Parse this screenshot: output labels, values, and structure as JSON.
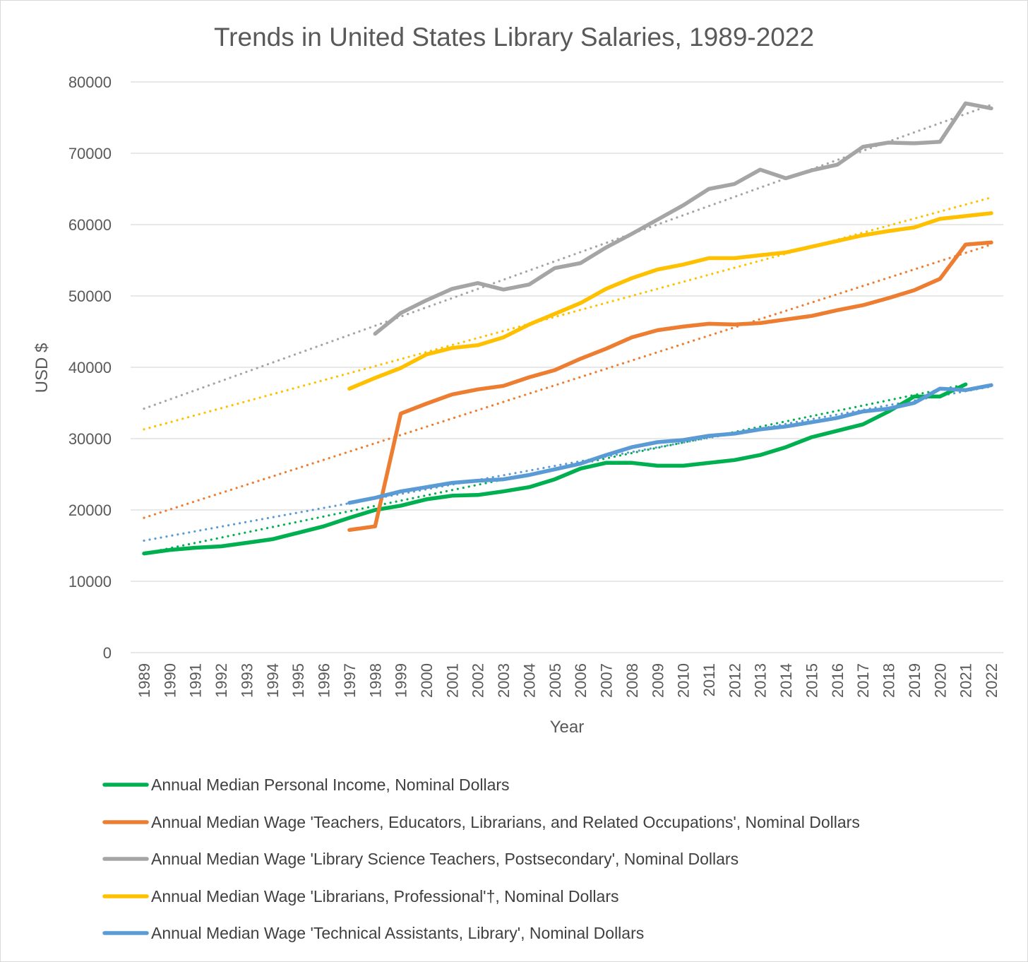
{
  "chart_data": {
    "type": "line",
    "title": "Trends in United States Library Salaries, 1989-2022",
    "xlabel": "Year",
    "ylabel": "USD $",
    "ylim": [
      0,
      80000
    ],
    "y_ticks": [
      0,
      10000,
      20000,
      30000,
      40000,
      50000,
      60000,
      70000,
      80000
    ],
    "x": [
      1989,
      1990,
      1991,
      1992,
      1993,
      1994,
      1995,
      1996,
      1997,
      1998,
      1999,
      2000,
      2001,
      2002,
      2003,
      2004,
      2005,
      2006,
      2007,
      2008,
      2009,
      2010,
      2011,
      2012,
      2013,
      2014,
      2015,
      2016,
      2017,
      2018,
      2019,
      2020,
      2021,
      2022
    ],
    "grid": "horizontal",
    "legend_position": "bottom",
    "trendlines": "linear, dotted, one per series",
    "series": [
      {
        "name": "Annual Median Personal Income, Nominal Dollars",
        "color": "#00b050",
        "values": [
          13900,
          14400,
          14700,
          14900,
          15400,
          15900,
          16800,
          17700,
          18900,
          20000,
          20600,
          21500,
          22000,
          22100,
          22600,
          23200,
          24300,
          25800,
          26600,
          26600,
          26200,
          26200,
          26600,
          27000,
          27700,
          28800,
          30200,
          31100,
          32000,
          33800,
          35900,
          35900,
          37600,
          null
        ]
      },
      {
        "name": "Annual Median Wage 'Teachers, Educators, Librarians, and Related Occupations', Nominal Dollars",
        "color": "#ed7d31",
        "values": [
          null,
          null,
          null,
          null,
          null,
          null,
          null,
          null,
          17200,
          17700,
          33500,
          34900,
          36200,
          36900,
          37400,
          38600,
          39600,
          41200,
          42600,
          44200,
          45200,
          45700,
          46100,
          46000,
          46200,
          46700,
          47200,
          48000,
          48700,
          49700,
          50800,
          52400,
          57200,
          57500
        ]
      },
      {
        "name": "Annual Median Wage 'Library Science Teachers, Postsecondary', Nominal Dollars",
        "color": "#a5a5a5",
        "values": [
          null,
          null,
          null,
          null,
          null,
          null,
          null,
          null,
          null,
          44700,
          47600,
          49400,
          51000,
          51800,
          50900,
          51600,
          53900,
          54600,
          56800,
          58700,
          60700,
          62700,
          65000,
          65700,
          67700,
          66500,
          67600,
          68400,
          70900,
          71500,
          71400,
          71600,
          77000,
          76300
        ]
      },
      {
        "name": "Annual Median Wage 'Librarians, Professional'†, Nominal Dollars",
        "color": "#ffc000",
        "values": [
          null,
          null,
          null,
          null,
          null,
          null,
          null,
          null,
          37000,
          38500,
          39900,
          41800,
          42700,
          43100,
          44200,
          46000,
          47500,
          49000,
          51000,
          52500,
          53700,
          54400,
          55300,
          55300,
          55700,
          56100,
          56900,
          57700,
          58500,
          59100,
          59600,
          60800,
          61200,
          61600
        ]
      },
      {
        "name": "Annual Median Wage 'Technical Assistants, Library', Nominal Dollars",
        "color": "#5b9bd5",
        "values": [
          null,
          null,
          null,
          null,
          null,
          null,
          null,
          null,
          21000,
          21700,
          22600,
          23200,
          23800,
          24100,
          24300,
          24900,
          25700,
          26500,
          27700,
          28800,
          29500,
          29800,
          30400,
          30700,
          31300,
          31700,
          32300,
          32900,
          33800,
          34200,
          35000,
          37000,
          36800,
          37500
        ]
      }
    ],
    "trend_endpoints": [
      {
        "from": [
          1989,
          13900
        ],
        "to": [
          2021,
          37600
        ],
        "color": "#00b050"
      },
      {
        "from": [
          1989,
          18900
        ],
        "to": [
          2022,
          57200
        ],
        "color": "#ed7d31"
      },
      {
        "from": [
          1989,
          34200
        ],
        "to": [
          2022,
          76800
        ],
        "color": "#a5a5a5"
      },
      {
        "from": [
          1989,
          31300
        ],
        "to": [
          2022,
          63800
        ],
        "color": "#ffc000"
      },
      {
        "from": [
          1989,
          15700
        ],
        "to": [
          2022,
          37300
        ],
        "color": "#5b9bd5"
      }
    ]
  }
}
